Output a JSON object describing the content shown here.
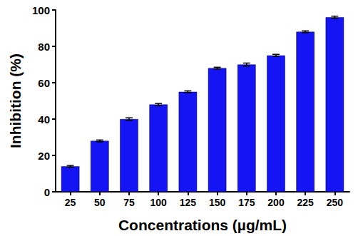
{
  "chart_data": {
    "type": "bar",
    "x_label": "Concentrations (µg/mL)",
    "y_label": "Inhibition (%)",
    "categories": [
      "25",
      "50",
      "75",
      "100",
      "125",
      "150",
      "175",
      "200",
      "225",
      "250"
    ],
    "values": [
      14,
      28,
      40,
      48,
      55,
      68,
      70,
      75,
      88,
      96
    ],
    "errors": [
      0.5,
      0.5,
      0.7,
      0.6,
      0.5,
      0.5,
      0.8,
      0.6,
      0.5,
      0.6
    ],
    "color": "#1414f5",
    "ylim": [
      0,
      100
    ],
    "yticks": [
      0,
      20,
      40,
      60,
      80,
      100
    ],
    "grid": false
  }
}
